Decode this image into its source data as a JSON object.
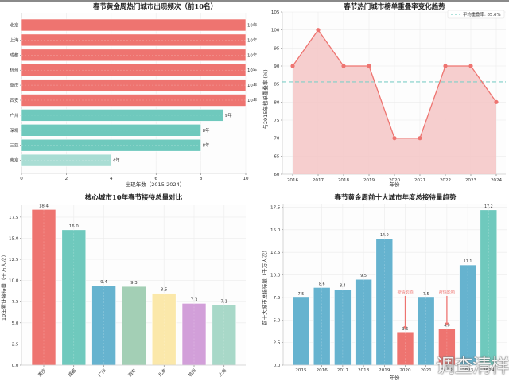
{
  "colors": {
    "red": "#ee7470",
    "teal": "#6fc9bd",
    "light_teal": "#a9ddd4",
    "blue": "#66b3cf",
    "sage": "#a3cfb5",
    "yellow": "#fbe8aa",
    "purple": "#d29fd9",
    "mint": "#a8d8c8",
    "avg_line": "#7fd0c8",
    "fill": "#f5c6c6"
  },
  "watermark": "调查清样",
  "chart_data": [
    {
      "type": "bar",
      "orientation": "horizontal",
      "title": "春节黄金周热门城市出现频次（前10名）",
      "xlabel": "出现年数（2015-2024）",
      "ylabel": "",
      "xlim": [
        0,
        10
      ],
      "xticks": [
        "0",
        "2",
        "4",
        "6",
        "8",
        "10"
      ],
      "grid": true,
      "categories": [
        "北京",
        "上海",
        "成都",
        "杭州",
        "重庆",
        "西安",
        "广州",
        "深圳",
        "三亚",
        "南京"
      ],
      "values": [
        10,
        10,
        10,
        10,
        10,
        10,
        9,
        8,
        8,
        4
      ],
      "value_labels": [
        "10年",
        "10年",
        "10年",
        "10年",
        "10年",
        "10年",
        "9年",
        "8年",
        "8年",
        "4年"
      ],
      "bar_colors": [
        "red",
        "red",
        "red",
        "red",
        "red",
        "red",
        "teal",
        "teal",
        "teal",
        "light_teal"
      ]
    },
    {
      "type": "line",
      "title": "春节热门城市榜单重叠率变化趋势",
      "xlabel": "年份",
      "ylabel": "与2015年榜单重叠率 (%)",
      "ylim": [
        60,
        105
      ],
      "yticks": [
        "60",
        "65",
        "70",
        "75",
        "80",
        "85",
        "90",
        "95",
        "100",
        "105"
      ],
      "grid": true,
      "x": [
        "2016",
        "2017",
        "2018",
        "2019",
        "2020",
        "2021",
        "2022",
        "2023",
        "2024"
      ],
      "series": [
        {
          "name": "重叠率",
          "values": [
            90,
            100,
            90,
            90,
            70,
            70,
            90,
            90,
            80
          ]
        }
      ],
      "area_fill": true,
      "reference_line": {
        "value": 85.6,
        "label": "平均重叠率: 85.6%"
      },
      "legend": "top-right"
    },
    {
      "type": "bar",
      "title": "核心城市10年春节接待总量对比",
      "xlabel": "",
      "ylabel": "10年累计接待量（千万人次）",
      "ylim": [
        0,
        18.9
      ],
      "yticks": [
        "0.0",
        "2.5",
        "5.0",
        "7.5",
        "10.0",
        "12.5",
        "15.0",
        "17.5"
      ],
      "grid": true,
      "categories": [
        "重庆",
        "成都",
        "广州",
        "西安",
        "北京",
        "杭州",
        "上海"
      ],
      "values": [
        18.4,
        16.0,
        9.4,
        9.3,
        8.5,
        7.3,
        7.1
      ],
      "value_labels": [
        "18.4",
        "16.0",
        "9.4",
        "9.3",
        "8.5",
        "7.3",
        "7.1"
      ],
      "bar_colors": [
        "red",
        "teal",
        "blue",
        "sage",
        "yellow",
        "purple",
        "mint"
      ]
    },
    {
      "type": "bar",
      "title": "春节黄金周前十大城市年度总接待量趋势",
      "xlabel": "年份",
      "ylabel": "前十大城市总接待量（千万人次）",
      "ylim": [
        0,
        17.8
      ],
      "yticks": [
        "0.0",
        "2.5",
        "5.0",
        "7.5",
        "10.0",
        "12.5",
        "15.0",
        "17.5"
      ],
      "grid": true,
      "categories": [
        "2015",
        "2016",
        "2017",
        "2018",
        "2019",
        "2020",
        "2021",
        "2022",
        "2023",
        "2024"
      ],
      "values": [
        7.5,
        8.6,
        8.4,
        9.5,
        14.0,
        3.6,
        7.5,
        4.0,
        11.1,
        17.2
      ],
      "value_labels": [
        "7.5",
        "8.6",
        "8.4",
        "9.5",
        "14.0",
        "3.6",
        "7.5",
        "4.0",
        "11.1",
        "17.2"
      ],
      "bar_colors": [
        "blue",
        "blue",
        "blue",
        "blue",
        "blue",
        "red",
        "blue",
        "red",
        "blue",
        "teal"
      ],
      "annotations": [
        {
          "category": "2020",
          "text": "疫情影响"
        },
        {
          "category": "2022",
          "text": "疫情影响"
        }
      ]
    }
  ]
}
